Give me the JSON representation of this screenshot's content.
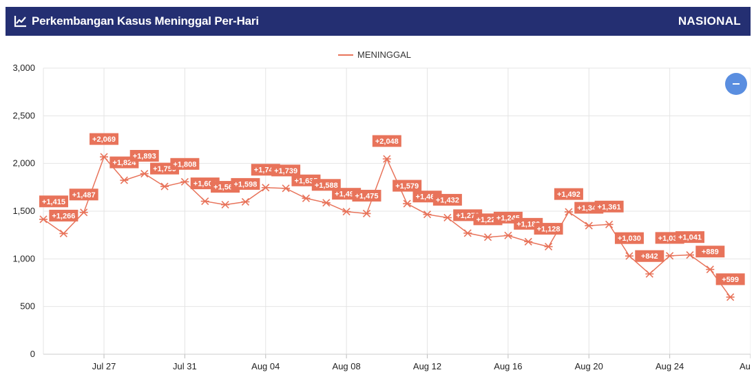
{
  "header": {
    "title": "Perkembangan Kasus Meninggal Per-Hari",
    "scope": "NASIONAL",
    "title_icon": "line-chart-icon"
  },
  "zoom_button": {
    "icon": "minus-icon"
  },
  "colors": {
    "header_bg": "#242f72",
    "series": "#e8735a",
    "zoom": "#5a8ee0",
    "grid": "#e4e4e4"
  },
  "chart_data": {
    "type": "line",
    "legend": "top-center",
    "grid": true,
    "ylim": [
      0,
      3000
    ],
    "xlim": [
      "2021-07-24",
      "2021-08-28"
    ],
    "yticks": [
      0,
      500,
      1000,
      1500,
      2000,
      2500,
      3000
    ],
    "ytick_labels": [
      "0",
      "500",
      "1,000",
      "1,500",
      "2,000",
      "2,500",
      "3,000"
    ],
    "xticks": [
      "2021-07-27",
      "2021-07-31",
      "2021-08-04",
      "2021-08-08",
      "2021-08-12",
      "2021-08-16",
      "2021-08-20",
      "2021-08-24",
      "2021-08-28"
    ],
    "xtick_labels": [
      "Jul 27",
      "Jul 31",
      "Aug 04",
      "Aug 08",
      "Aug 12",
      "Aug 16",
      "Aug 20",
      "Aug 24",
      "Aug"
    ],
    "series": [
      {
        "name": "MENINGGAL",
        "x": [
          "2021-07-24",
          "2021-07-25",
          "2021-07-26",
          "2021-07-27",
          "2021-07-28",
          "2021-07-29",
          "2021-07-30",
          "2021-07-31",
          "2021-08-01",
          "2021-08-02",
          "2021-08-03",
          "2021-08-04",
          "2021-08-05",
          "2021-08-06",
          "2021-08-07",
          "2021-08-08",
          "2021-08-09",
          "2021-08-10",
          "2021-08-11",
          "2021-08-12",
          "2021-08-13",
          "2021-08-14",
          "2021-08-15",
          "2021-08-16",
          "2021-08-17",
          "2021-08-18",
          "2021-08-19",
          "2021-08-20",
          "2021-08-21",
          "2021-08-22",
          "2021-08-23",
          "2021-08-24",
          "2021-08-25",
          "2021-08-26",
          "2021-08-27"
        ],
        "values": [
          1415,
          1266,
          1487,
          2069,
          1824,
          1893,
          1759,
          1808,
          1604,
          1568,
          1598,
          1747,
          1739,
          1635,
          1588,
          1495,
          1475,
          2048,
          1579,
          1466,
          1432,
          1270,
          1227,
          1245,
          1180,
          1128,
          1492,
          1348,
          1361,
          1030,
          842,
          1032,
          1041,
          889,
          599
        ],
        "labels": [
          "+1,415",
          "+1,266",
          "+1,487",
          "+2,069",
          "+1,824",
          "+1,893",
          "+1,759",
          "+1,808",
          "+1,604",
          "+1,568",
          "+1,598",
          "+1,747",
          "+1,739",
          "+1,635",
          "+1,588",
          "+1,495",
          "+1,475",
          "+2,048",
          "+1,579",
          "+1,466",
          "+1,432",
          "+1,270",
          "+1,227",
          "+1,245",
          "+1,180",
          "+1,128",
          "+1,492",
          "+1,348",
          "+1,361",
          "+1,030",
          "+842",
          "+1,032",
          "+1,041",
          "+889",
          "+599"
        ]
      }
    ]
  }
}
